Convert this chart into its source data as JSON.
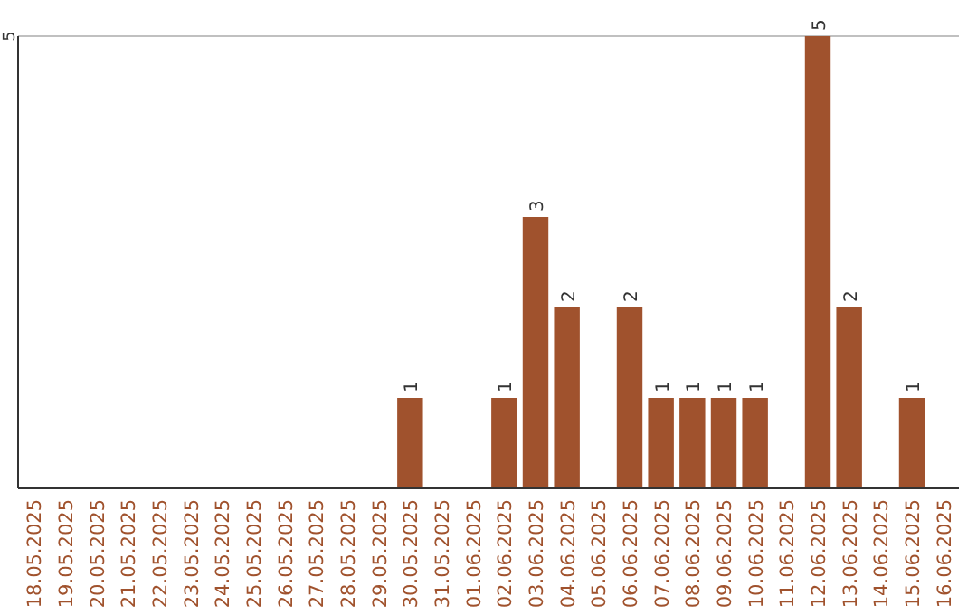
{
  "chart_data": {
    "type": "bar",
    "categories": [
      "18.05.2025",
      "19.05.2025",
      "20.05.2025",
      "21.05.2025",
      "22.05.2025",
      "23.05.2025",
      "24.05.2025",
      "25.05.2025",
      "26.05.2025",
      "27.05.2025",
      "28.05.2025",
      "29.05.2025",
      "30.05.2025",
      "31.05.2025",
      "01.06.2025",
      "02.06.2025",
      "03.06.2025",
      "04.06.2025",
      "05.06.2025",
      "06.06.2025",
      "07.06.2025",
      "08.06.2025",
      "09.06.2025",
      "10.06.2025",
      "11.06.2025",
      "12.06.2025",
      "13.06.2025",
      "14.06.2025",
      "15.06.2025",
      "16.06.2025"
    ],
    "values": [
      null,
      null,
      null,
      null,
      null,
      null,
      null,
      null,
      null,
      null,
      null,
      null,
      1,
      null,
      null,
      1,
      3,
      2,
      null,
      2,
      1,
      1,
      1,
      1,
      null,
      5,
      2,
      null,
      1,
      null
    ],
    "color": "#a0522d",
    "ylim": [
      0,
      5
    ],
    "yticks": [
      5
    ],
    "ref_lines": [
      {
        "axis": "y",
        "value": 5,
        "color": "#c0c0c0"
      }
    ],
    "data_labels": true
  }
}
